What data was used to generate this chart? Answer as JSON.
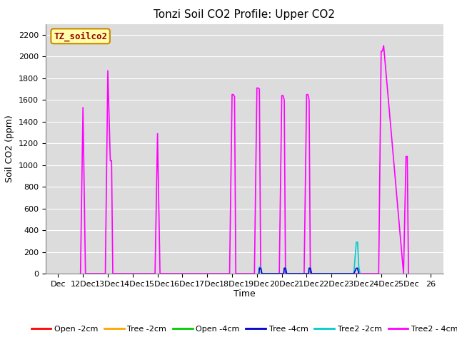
{
  "title": "Tonzi Soil CO2 Profile: Upper CO2",
  "ylabel": "Soil CO2 (ppm)",
  "xlabel": "Time",
  "legend_label": "TZ_soilco2",
  "ylim": [
    0,
    2300
  ],
  "yticks": [
    0,
    200,
    400,
    600,
    800,
    1000,
    1200,
    1400,
    1600,
    1800,
    2000,
    2200
  ],
  "bg_color": "#dcdcdc",
  "series": {
    "Open_-2cm": {
      "color": "#ff0000",
      "label": "Open -2cm"
    },
    "Tree_-2cm": {
      "color": "#ffa500",
      "label": "Tree -2cm"
    },
    "Open_-4cm": {
      "color": "#00cc00",
      "label": "Open -4cm"
    },
    "Tree_-4cm": {
      "color": "#0000cd",
      "label": "Tree -4cm"
    },
    "Tree2_-2cm": {
      "color": "#00cccc",
      "label": "Tree2 -2cm"
    },
    "Tree2_-4cm": {
      "color": "#ff00ff",
      "label": "Tree2 - 4cm"
    }
  },
  "xticklabels": [
    "Dec",
    "12Dec",
    "13Dec",
    "14Dec",
    "15Dec",
    "16Dec",
    "17Dec",
    "18Dec",
    "19Dec",
    "20Dec",
    "21Dec",
    "22Dec",
    "23Dec",
    "24Dec",
    "25Dec",
    "26"
  ],
  "xtick_positions": [
    0,
    1,
    2,
    3,
    4,
    5,
    6,
    7,
    8,
    9,
    10,
    11,
    12,
    13,
    14,
    15
  ],
  "data": {
    "Tree2_-4cm": {
      "x": [
        0.9,
        1.0,
        1.1,
        1.9,
        2.0,
        2.1,
        2.15,
        2.2,
        3.9,
        4.0,
        4.1,
        6.9,
        7.0,
        7.05,
        7.1,
        7.15,
        7.9,
        8.0,
        8.05,
        8.1,
        8.15,
        8.2,
        8.9,
        9.0,
        9.05,
        9.1,
        9.15,
        9.9,
        10.0,
        10.05,
        10.1,
        10.15,
        12.9,
        13.0,
        13.05,
        13.1,
        13.9,
        14.0,
        14.05,
        14.1
      ],
      "y": [
        0,
        1530,
        0,
        0,
        1870,
        1040,
        1040,
        0,
        0,
        1290,
        0,
        0,
        1650,
        1650,
        1630,
        0,
        0,
        1710,
        1710,
        1700,
        70,
        0,
        0,
        1640,
        1640,
        1600,
        0,
        0,
        1650,
        1650,
        1600,
        0,
        0,
        2050,
        2050,
        2100,
        0,
        1080,
        1080,
        0
      ]
    },
    "Tree2_-2cm": {
      "x": [
        8.08,
        8.1,
        8.15,
        8.2,
        9.08,
        9.1,
        9.15,
        9.2,
        10.08,
        10.1,
        10.15,
        10.2,
        11.9,
        12.0,
        12.05,
        12.1,
        12.15
      ],
      "y": [
        0,
        60,
        60,
        0,
        0,
        50,
        50,
        0,
        0,
        50,
        50,
        0,
        0,
        290,
        290,
        60,
        0
      ]
    },
    "Tree_-4cm": {
      "x": [
        8.08,
        8.1,
        8.15,
        8.2,
        9.08,
        9.1,
        9.15,
        9.2,
        10.08,
        10.1,
        10.15,
        10.2,
        11.9,
        12.0,
        12.05,
        12.1
      ],
      "y": [
        0,
        50,
        50,
        0,
        0,
        50,
        50,
        0,
        0,
        50,
        50,
        0,
        0,
        50,
        50,
        0
      ]
    }
  }
}
